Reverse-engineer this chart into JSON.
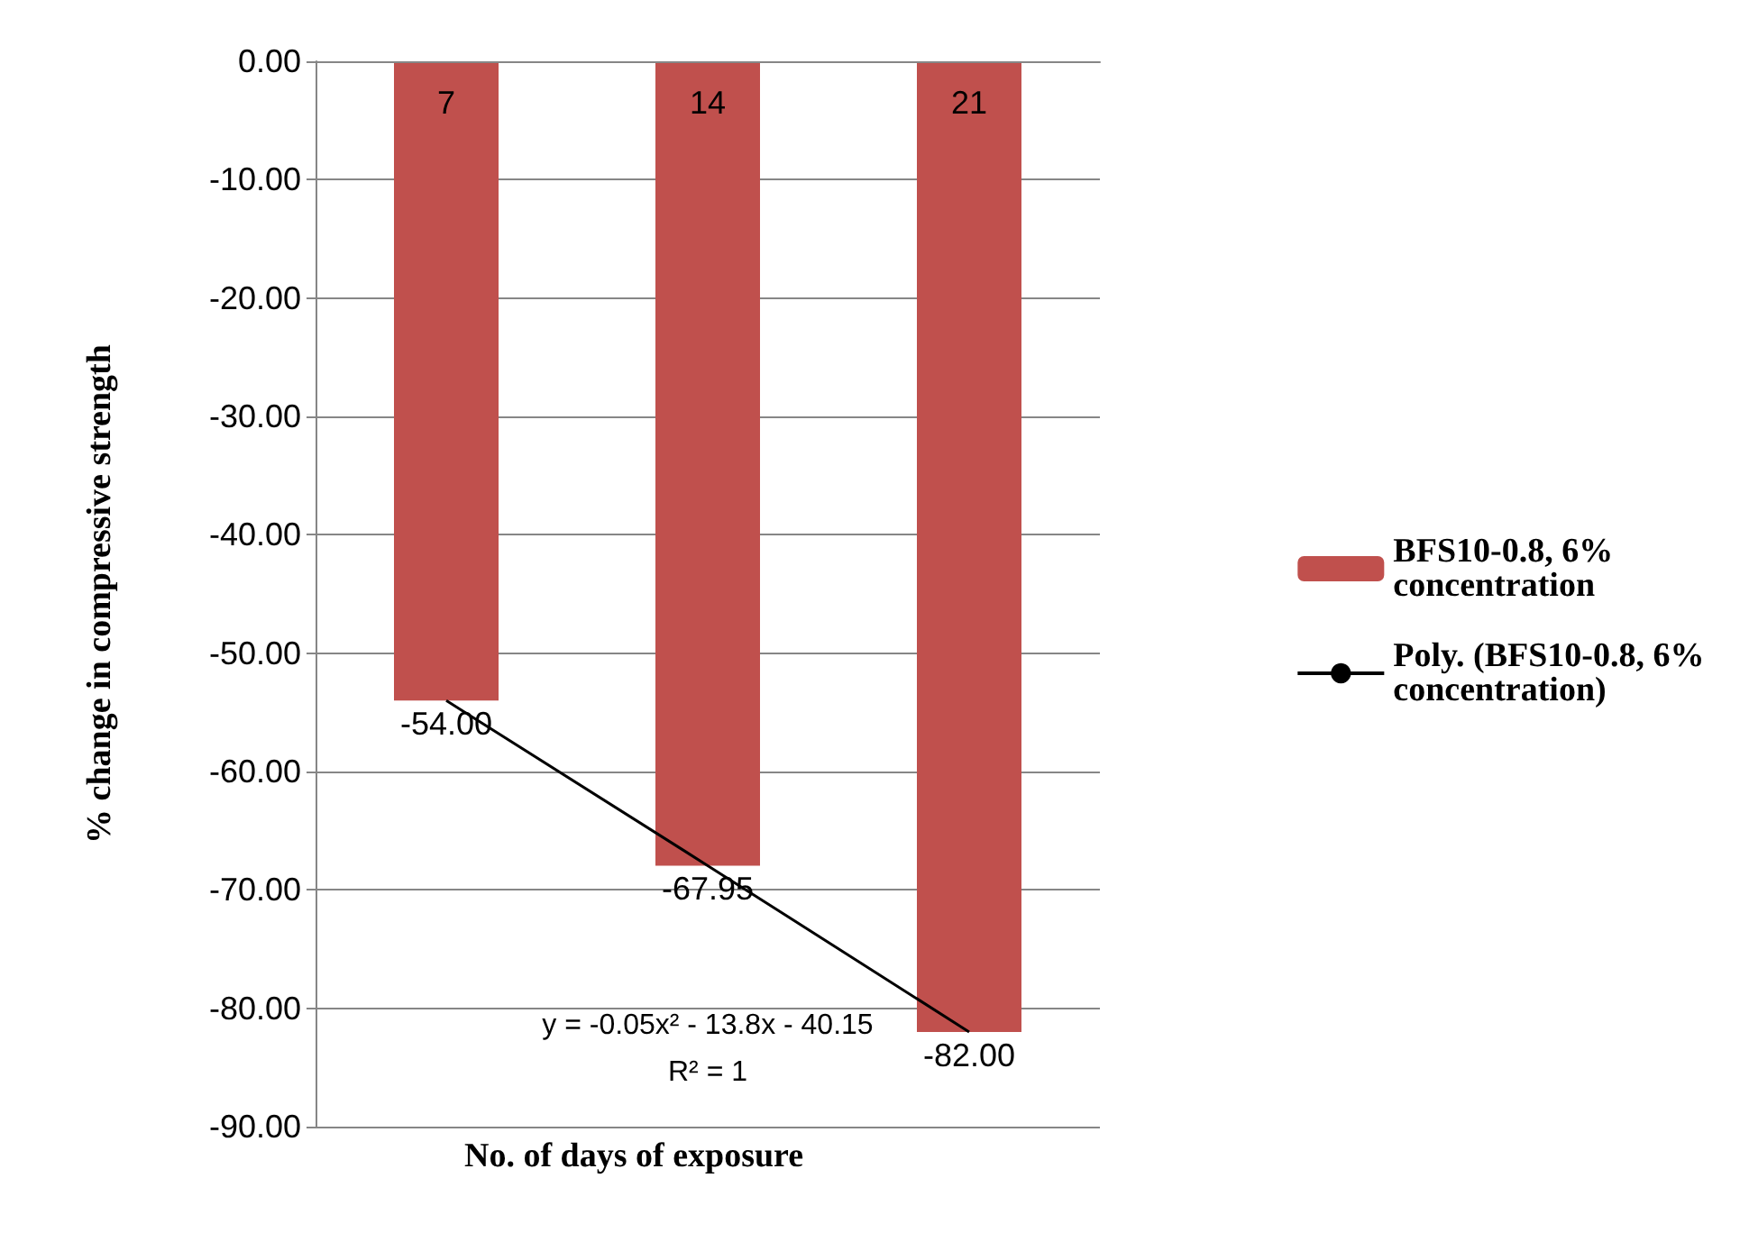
{
  "chart_data": {
    "type": "bar",
    "xlabel": "No. of days of exposure",
    "ylabel": "% change in compressive strength",
    "categories": [
      "7",
      "14",
      "21"
    ],
    "series": [
      {
        "name": "BFS10-0.8, 6% concentration",
        "color": "#c0504d",
        "values": [
          -54,
          -67.95,
          -82
        ],
        "value_labels": [
          "-54.00",
          "-67.95",
          "-82.00"
        ]
      },
      {
        "type": "line",
        "name": "Poly. (BFS10-0.8, 6% concentration)",
        "color": "#000000",
        "x": [
          "7",
          "14",
          "21"
        ],
        "values": [
          -54,
          -67.95,
          -82
        ]
      }
    ],
    "ylim": [
      -90,
      0
    ],
    "yticks": [
      {
        "value": 0,
        "label": "0.00"
      },
      {
        "value": -10,
        "label": "-10.00"
      },
      {
        "value": -20,
        "label": "-20.00"
      },
      {
        "value": -30,
        "label": "-30.00"
      },
      {
        "value": -40,
        "label": "-40.00"
      },
      {
        "value": -50,
        "label": "-50.00"
      },
      {
        "value": -60,
        "label": "-60.00"
      },
      {
        "value": -70,
        "label": "-70.00"
      },
      {
        "value": -80,
        "label": "-80.00"
      },
      {
        "value": -90,
        "label": "-90.00"
      }
    ],
    "grid": "y",
    "legend": "right",
    "marker": "none",
    "line_style": "solid",
    "annotations": [
      "y = -0.05x² - 13.8x - 40.15",
      "R² = 1"
    ]
  }
}
